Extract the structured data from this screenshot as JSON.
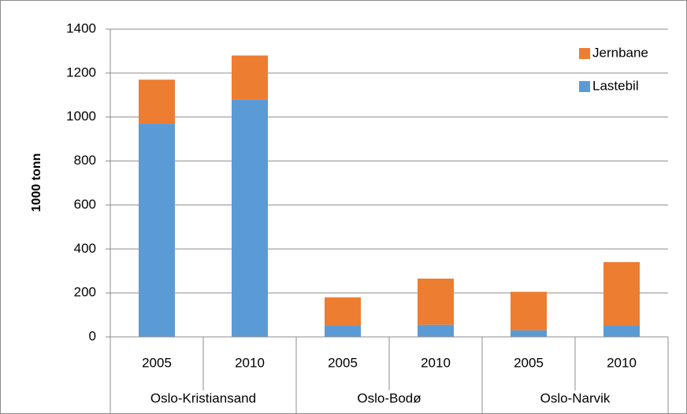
{
  "chart_data": {
    "type": "stacked_bar",
    "y_label": "1000 tonn",
    "categories": [
      "2005",
      "2010",
      "2005",
      "2010",
      "2005",
      "2010"
    ],
    "groups": [
      "Oslo-Kristiansand",
      "Oslo-Bodø",
      "Oslo-Narvik"
    ],
    "series": [
      {
        "name": "Lastebil",
        "color": "#5b9bd5",
        "values": [
          970,
          1080,
          50,
          55,
          30,
          50
        ]
      },
      {
        "name": "Jernbane",
        "color": "#ed7d31",
        "values": [
          200,
          200,
          130,
          210,
          175,
          290
        ]
      }
    ],
    "ylim": [
      0,
      1400
    ],
    "yticks": [
      0,
      200,
      400,
      600,
      800,
      1000,
      1200,
      1400
    ],
    "grid": true,
    "legend": "top-right"
  }
}
